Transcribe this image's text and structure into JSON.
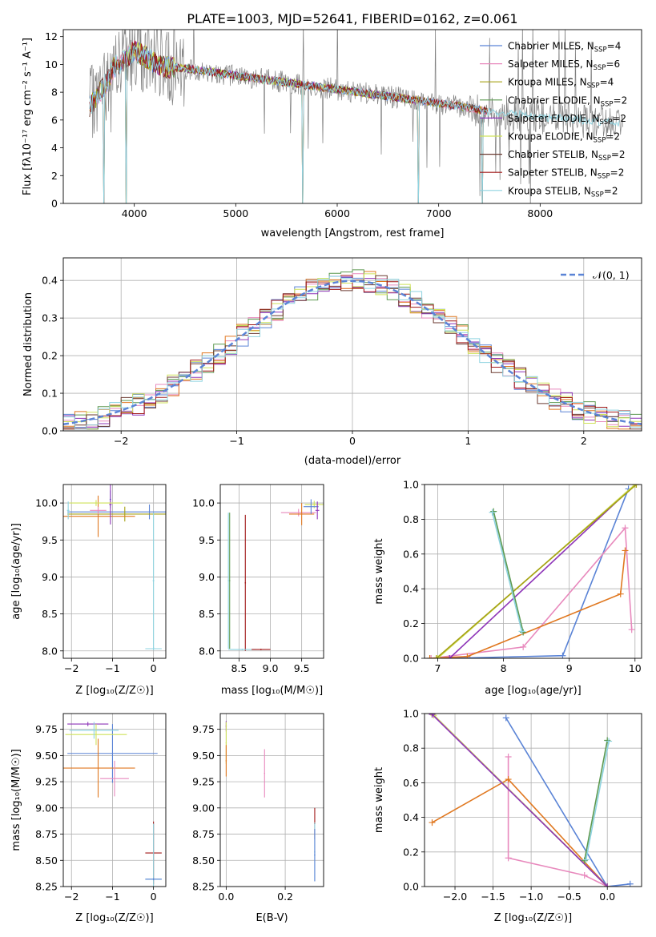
{
  "figure": {
    "title": "PLATE=1003, MJD=52641, FIBERID=0162, z=0.061"
  },
  "colors": {
    "Chabrier MILES": "#5b84d6",
    "Salpeter MILES": "#e889bd",
    "Kroupa MILES": "#a5a114",
    "Chabrier ELODIE": "#5d9950",
    "Salpeter ELODIE": "#8e35b8",
    "Kroupa ELODIE": "#cfe25a",
    "Chabrier STELIB": "#6b3a30",
    "Salpeter STELIB": "#a01818",
    "Kroupa STELIB": "#8ed3e0",
    "data": "#808080",
    "orange": "#e07820",
    "grid": "#b0b0b0"
  },
  "chart_data": [
    {
      "id": "spectrum",
      "type": "line",
      "xlabel": "wavelength [Angstrom, rest frame]",
      "ylabel": "Flux [fλ10⁻¹⁷ erg cm⁻² s⁻¹ A⁻¹]",
      "xlim": [
        3300,
        9000
      ],
      "ylim": [
        0,
        12.5
      ],
      "xticks": [
        4000,
        5000,
        6000,
        7000,
        8000
      ],
      "yticks": [
        0,
        2,
        4,
        6,
        8,
        10,
        12
      ],
      "grid": false,
      "legend_position": "top-right",
      "legend": [
        {
          "base": "Chabrier MILES, N",
          "sub": "SSP",
          "tail": "=4",
          "color_key": "Chabrier MILES"
        },
        {
          "base": "Salpeter MILES, N",
          "sub": "SSP",
          "tail": "=6",
          "color_key": "Salpeter MILES"
        },
        {
          "base": "Kroupa MILES, N",
          "sub": "SSP",
          "tail": "=4",
          "color_key": "Kroupa MILES"
        },
        {
          "base": "Chabrier ELODIE, N",
          "sub": "SSP",
          "tail": "=2",
          "color_key": "Chabrier ELODIE"
        },
        {
          "base": "Salpeter ELODIE, N",
          "sub": "SSP",
          "tail": "=2",
          "color_key": "Salpeter ELODIE"
        },
        {
          "base": "Kroupa ELODIE, N",
          "sub": "SSP",
          "tail": "=2",
          "color_key": "Kroupa ELODIE"
        },
        {
          "base": "Chabrier STELIB, N",
          "sub": "SSP",
          "tail": "=2",
          "color_key": "Chabrier STELIB"
        },
        {
          "base": "Salpeter STELIB, N",
          "sub": "SSP",
          "tail": "=2",
          "color_key": "Salpeter STELIB"
        },
        {
          "base": "Kroupa STELIB, N",
          "sub": "SSP",
          "tail": "=2",
          "color_key": "Kroupa STELIB"
        }
      ],
      "continuum": {
        "x": [
          3560,
          3700,
          3800,
          3900,
          4000,
          4100,
          4200,
          4300,
          4400,
          4500,
          4700,
          5000,
          5300,
          5600,
          6000,
          6300,
          6600,
          6900,
          7200,
          7500,
          7800,
          8200,
          8800
        ],
        "y": [
          7.0,
          8.4,
          9.8,
          10.3,
          11.0,
          10.6,
          10.1,
          9.8,
          9.8,
          9.7,
          9.5,
          9.2,
          8.9,
          8.6,
          8.2,
          7.9,
          7.6,
          7.3,
          7.0,
          6.6,
          6.4,
          6.1,
          5.8
        ]
      },
      "model_drop_wavelengths": [
        3700,
        3920,
        5660,
        6800,
        7430
      ]
    },
    {
      "id": "residuals",
      "type": "line",
      "xlabel": "(data-model)/error",
      "ylabel": "Normed distribution",
      "xlim": [
        -2.5,
        2.5
      ],
      "ylim": [
        0,
        0.46
      ],
      "xticks": [
        -2,
        -1,
        0,
        1,
        2
      ],
      "yticks": [
        0.0,
        0.1,
        0.2,
        0.3,
        0.4
      ],
      "grid": true,
      "legend_position": "top-right",
      "legend": [
        {
          "label": "𝒩(0, 1)",
          "style": "dashed",
          "color_key": "Chabrier MILES"
        }
      ],
      "bin_width": 0.1
    },
    {
      "id": "age-vs-Z",
      "type": "scatter",
      "xlabel": "Z [log₁₀(Z/Z☉)]",
      "ylabel": "age [log₁₀(age/yr)]",
      "xlim": [
        -2.2,
        0.3
      ],
      "ylim": [
        7.9,
        10.25
      ],
      "xticks": [
        -2,
        -1,
        0
      ],
      "yticks": [
        8.0,
        8.5,
        9.0,
        9.5,
        10.0
      ],
      "grid": true,
      "series": [
        {
          "color_key": "Chabrier MILES",
          "x": -0.1,
          "y": 9.88,
          "xerr": 2.0,
          "yerr": 0.1
        },
        {
          "color_key": "Chabrier MILES",
          "x": -1.05,
          "y": 10.05,
          "xerr": 0.02,
          "yerr": 0.12
        },
        {
          "color_key": "Kroupa MILES",
          "x": -0.7,
          "y": 9.85,
          "xerr": 1.4,
          "yerr": 0.1
        },
        {
          "color_key": "orange",
          "x": -1.35,
          "y": 9.82,
          "xerr": 0.9,
          "yerr": 0.28
        },
        {
          "color_key": "Salpeter ELODIE",
          "x": -1.05,
          "y": 9.98,
          "xerr": 0.03,
          "yerr": 0.27
        },
        {
          "color_key": "Kroupa ELODIE",
          "x": -1.4,
          "y": 10.0,
          "xerr": 0.65,
          "yerr": 0.04
        },
        {
          "color_key": "Salpeter MILES",
          "x": -1.35,
          "y": 9.9,
          "xerr": 0.2,
          "yerr": 0.05
        },
        {
          "color_key": "Kroupa STELIB",
          "x": 0.0,
          "y": 8.95,
          "xerr": 0.02,
          "yerr": 0.92
        },
        {
          "color_key": "Kroupa STELIB",
          "x": 0.0,
          "y": 8.03,
          "xerr": 0.2,
          "yerr": 0.02
        },
        {
          "color_key": "Kroupa STELIB",
          "x": -2.08,
          "y": 9.9,
          "xerr": 0.03,
          "yerr": 0.12
        }
      ]
    },
    {
      "id": "age-vs-mass",
      "type": "scatter",
      "xlabel": "mass [log₁₀(M/M☉)]",
      "ylabel": "",
      "xlim": [
        8.2,
        9.85
      ],
      "ylim": [
        7.9,
        10.25
      ],
      "xticks": [
        8.5,
        9.0,
        9.5
      ],
      "yticks": [
        8.0,
        8.5,
        9.0,
        9.5,
        10.0
      ],
      "grid": true,
      "series": [
        {
          "color_key": "Kroupa STELIB",
          "x": 8.33,
          "y": 8.95,
          "xerr": 0.01,
          "yerr": 0.92
        },
        {
          "color_key": "Chabrier ELODIE",
          "x": 8.35,
          "y": 8.95,
          "xerr": 0.01,
          "yerr": 0.92
        },
        {
          "color_key": "Salpeter STELIB",
          "x": 8.6,
          "y": 8.92,
          "xerr": 0.01,
          "yerr": 0.92
        },
        {
          "color_key": "Kroupa STELIB",
          "x": 8.55,
          "y": 8.02,
          "xerr": 0.22,
          "yerr": 0.01
        },
        {
          "color_key": "Salpeter STELIB",
          "x": 8.85,
          "y": 8.02,
          "xerr": 0.15,
          "yerr": 0.01
        },
        {
          "color_key": "Salpeter MILES",
          "x": 9.45,
          "y": 9.87,
          "xerr": 0.28,
          "yerr": 0.05
        },
        {
          "color_key": "orange",
          "x": 9.5,
          "y": 9.85,
          "xerr": 0.2,
          "yerr": 0.15
        },
        {
          "color_key": "Kroupa ELODIE",
          "x": 9.7,
          "y": 9.98,
          "xerr": 0.15,
          "yerr": 0.05
        },
        {
          "color_key": "Chabrier MILES",
          "x": 9.65,
          "y": 9.95,
          "xerr": 0.12,
          "yerr": 0.1
        },
        {
          "color_key": "Salpeter ELODIE",
          "x": 9.75,
          "y": 9.9,
          "xerr": 0.03,
          "yerr": 0.12
        }
      ]
    },
    {
      "id": "massweight-vs-age",
      "type": "line",
      "xlabel": "age [log₁₀(age/yr)]",
      "ylabel": "mass weight",
      "xlim": [
        6.8,
        10.1
      ],
      "ylim": [
        0,
        1
      ],
      "xticks": [
        7,
        8,
        9,
        10
      ],
      "yticks": [
        0.0,
        0.2,
        0.4,
        0.6,
        0.8,
        1.0
      ],
      "grid": true,
      "series": [
        {
          "color_key": "Chabrier MILES",
          "x": [
            7.18,
            8.9,
            9.9
          ],
          "y": [
            0.0,
            0.015,
            0.975
          ]
        },
        {
          "color_key": "Salpeter MILES",
          "x": [
            6.9,
            8.3,
            9.85,
            9.95
          ],
          "y": [
            0.0,
            0.065,
            0.75,
            0.165
          ]
        },
        {
          "color_key": "orange",
          "x": [
            6.88,
            7.45,
            9.78,
            9.85
          ],
          "y": [
            0.0,
            0.01,
            0.37,
            0.62
          ]
        },
        {
          "color_key": "Salpeter ELODIE",
          "x": [
            7.18,
            10.0
          ],
          "y": [
            0.0,
            1.0
          ]
        },
        {
          "color_key": "Kroupa ELODIE",
          "x": [
            7.0,
            10.0
          ],
          "y": [
            0.0,
            1.0
          ]
        },
        {
          "color_key": "Kroupa MILES",
          "x": [
            6.98,
            10.02
          ],
          "y": [
            0.0,
            1.0
          ]
        },
        {
          "color_key": "Chabrier ELODIE",
          "x": [
            7.85,
            8.3
          ],
          "y": [
            0.845,
            0.15
          ]
        },
        {
          "color_key": "Kroupa STELIB",
          "x": [
            7.83,
            8.28
          ],
          "y": [
            0.84,
            0.155
          ]
        }
      ]
    },
    {
      "id": "mass-vs-Z",
      "type": "scatter",
      "xlabel": "Z [log₁₀(Z/Z☉)]",
      "ylabel": "mass [log₁₀(M/M☉)]",
      "xlim": [
        -2.2,
        0.3
      ],
      "ylim": [
        8.25,
        9.9
      ],
      "xticks": [
        -2,
        -1,
        0
      ],
      "yticks": [
        8.25,
        8.5,
        8.75,
        9.0,
        9.25,
        9.5,
        9.75
      ],
      "grid": true,
      "series": [
        {
          "color_key": "Salpeter ELODIE",
          "x": -1.6,
          "y": 9.8,
          "xerr": 0.5,
          "yerr": 0.02
        },
        {
          "color_key": "Chabrier MILES",
          "x": -1.0,
          "y": 9.52,
          "xerr": 1.1,
          "yerr": 0.28
        },
        {
          "color_key": "Kroupa ELODIE",
          "x": -1.4,
          "y": 9.7,
          "xerr": 0.75,
          "yerr": 0.1
        },
        {
          "color_key": "Kroupa STELIB",
          "x": -1.45,
          "y": 9.74,
          "xerr": 0.6,
          "yerr": 0.08
        },
        {
          "color_key": "orange",
          "x": -1.35,
          "y": 9.38,
          "xerr": 0.9,
          "yerr": 0.28
        },
        {
          "color_key": "Salpeter MILES",
          "x": -0.95,
          "y": 9.28,
          "xerr": 0.35,
          "yerr": 0.17
        },
        {
          "color_key": "Salpeter STELIB",
          "x": 0.0,
          "y": 8.57,
          "xerr": 0.2,
          "yerr": 0.3
        },
        {
          "color_key": "Kroupa STELIB",
          "x": 0.0,
          "y": 8.32,
          "xerr": 0.2,
          "yerr": 0.53
        },
        {
          "color_key": "Chabrier MILES",
          "x": 0.0,
          "y": 8.32,
          "xerr": 0.2,
          "yerr": 0.01
        }
      ]
    },
    {
      "id": "mass-vs-ebv",
      "type": "scatter",
      "xlabel": "E(B-V)",
      "ylabel": "",
      "xlim": [
        -0.02,
        0.33
      ],
      "ylim": [
        8.25,
        9.9
      ],
      "xticks": [
        0.0,
        0.2
      ],
      "yticks": [
        8.25,
        8.5,
        8.75,
        9.0,
        9.25,
        9.5,
        9.75
      ],
      "grid": true,
      "series": [
        {
          "color_key": "Salpeter ELODIE",
          "x": 0.0,
          "y": 9.78,
          "xerr": 0.002,
          "yerr": 0.05
        },
        {
          "color_key": "Kroupa ELODIE",
          "x": 0.0,
          "y": 9.62,
          "xerr": 0.002,
          "yerr": 0.2
        },
        {
          "color_key": "orange",
          "x": 0.0,
          "y": 9.45,
          "xerr": 0.002,
          "yerr": 0.15
        },
        {
          "color_key": "Salpeter MILES",
          "x": 0.13,
          "y": 9.33,
          "xerr": 0.002,
          "yerr": 0.23
        },
        {
          "color_key": "Salpeter STELIB",
          "x": 0.3,
          "y": 8.85,
          "xerr": 0.002,
          "yerr": 0.15
        },
        {
          "color_key": "Kroupa STELIB",
          "x": 0.3,
          "y": 8.58,
          "xerr": 0.002,
          "yerr": 0.28
        },
        {
          "color_key": "Chabrier MILES",
          "x": 0.3,
          "y": 8.55,
          "xerr": 0.002,
          "yerr": 0.25
        }
      ]
    },
    {
      "id": "massweight-vs-Z",
      "type": "line",
      "xlabel": "Z [log₁₀(Z/Z☉)]",
      "ylabel": "mass weight",
      "xlim": [
        -2.4,
        0.45
      ],
      "ylim": [
        0,
        1
      ],
      "xticks": [
        -2.0,
        -1.5,
        -1.0,
        -0.5,
        0.0
      ],
      "yticks": [
        0.0,
        0.2,
        0.4,
        0.6,
        0.8,
        1.0
      ],
      "grid": true,
      "series": [
        {
          "color_key": "Chabrier MILES",
          "x": [
            -1.33,
            0.0,
            0.3
          ],
          "y": [
            0.975,
            0.0,
            0.015
          ]
        },
        {
          "color_key": "Salpeter MILES",
          "x": [
            -1.3,
            -1.3,
            -0.3,
            0.0
          ],
          "y": [
            0.75,
            0.165,
            0.065,
            0.0
          ]
        },
        {
          "color_key": "orange",
          "x": [
            -2.3,
            -1.3,
            0.0
          ],
          "y": [
            0.37,
            0.62,
            0.0
          ]
        },
        {
          "color_key": "Kroupa MILES",
          "x": [
            -2.3,
            0.0
          ],
          "y": [
            1.0,
            0.0
          ]
        },
        {
          "color_key": "Kroupa ELODIE",
          "x": [
            -2.28,
            0.0
          ],
          "y": [
            0.99,
            0.0
          ]
        },
        {
          "color_key": "Salpeter ELODIE",
          "x": [
            -2.3,
            0.0
          ],
          "y": [
            0.995,
            0.0
          ]
        },
        {
          "color_key": "Chabrier ELODIE",
          "x": [
            -0.3,
            0.0
          ],
          "y": [
            0.15,
            0.845
          ]
        },
        {
          "color_key": "Kroupa STELIB",
          "x": [
            -0.28,
            0.02
          ],
          "y": [
            0.155,
            0.84
          ]
        }
      ]
    }
  ]
}
